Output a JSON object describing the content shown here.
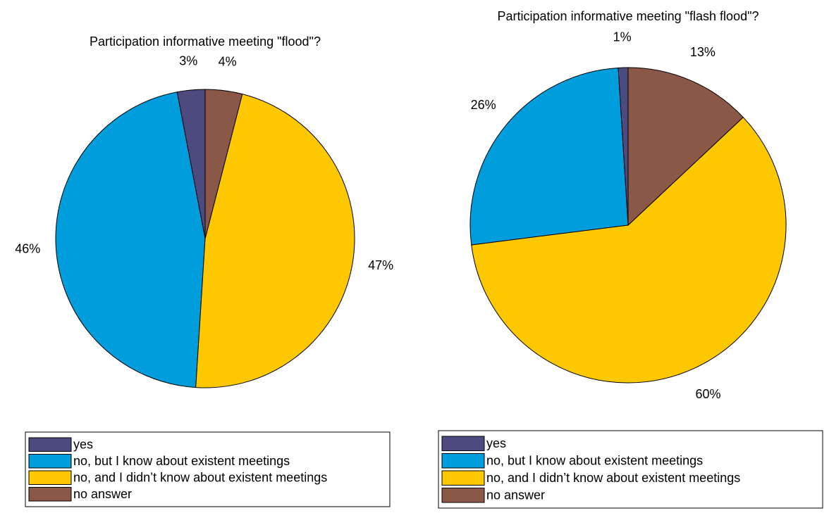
{
  "chart_data": [
    {
      "type": "pie",
      "title": "Participation informative meeting \"flood\"?",
      "labels": [
        "yes",
        "no, but I know about existent meetings",
        "no, and I didn’t know about existent meetings",
        "no answer"
      ],
      "values": [
        3,
        46,
        47,
        4
      ],
      "value_labels": [
        "3%",
        "46%",
        "47%",
        "4%"
      ],
      "colors": [
        "#4c4a7f",
        "#009ddc",
        "#fdc800",
        "#8b5746"
      ]
    },
    {
      "type": "pie",
      "title": "Participation informative meeting \"flash flood\"?",
      "labels": [
        "yes",
        "no, but I know about existent meetings",
        "no, and I didn’t know about existent meetings",
        "no answer"
      ],
      "values": [
        1,
        26,
        60,
        13
      ],
      "value_labels": [
        "1%",
        "26%",
        "60%",
        "13%"
      ],
      "colors": [
        "#4c4a7f",
        "#009ddc",
        "#fdc800",
        "#8b5746"
      ]
    }
  ]
}
